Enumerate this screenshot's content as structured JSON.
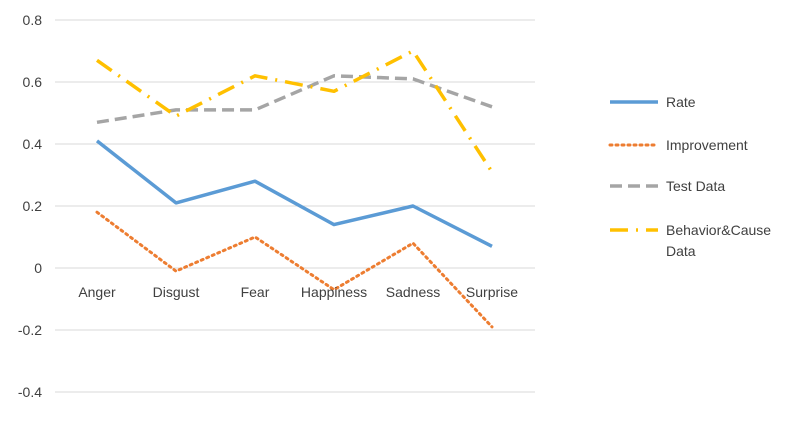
{
  "chart_data": {
    "type": "line",
    "title": "",
    "xlabel": "",
    "ylabel": "",
    "categories": [
      "Anger",
      "Disgust",
      "Fear",
      "Happiness",
      "Sadness",
      "Surprise"
    ],
    "ylim": [
      -0.4,
      0.8
    ],
    "yticks": [
      0.8,
      0.6,
      0.4,
      0.2,
      0,
      -0.2,
      -0.4
    ],
    "ytick_labels": [
      "0.8",
      "0.6",
      "0.4",
      "0.2",
      "0",
      "-0.2",
      "-0.4"
    ],
    "grid": true,
    "legend_position": "right",
    "series": [
      {
        "name": "Rate",
        "values": [
          0.41,
          0.21,
          0.28,
          0.14,
          0.2,
          0.07
        ],
        "color": "#5B9BD5",
        "style": "solid"
      },
      {
        "name": "Improvement",
        "values": [
          0.18,
          -0.01,
          0.1,
          -0.07,
          0.08,
          -0.19
        ],
        "color": "#ED7D31",
        "style": "dotted"
      },
      {
        "name": "Test Data",
        "values": [
          0.47,
          0.51,
          0.51,
          0.62,
          0.61,
          0.52
        ],
        "color": "#A5A5A5",
        "style": "dashed"
      },
      {
        "name": "Behavior&Cause Data",
        "legend_lines": [
          "Behavior&Cause",
          "Data"
        ],
        "values": [
          0.67,
          0.49,
          0.62,
          0.57,
          0.7,
          0.31
        ],
        "color": "#FFC000",
        "style": "dash-dot"
      }
    ]
  }
}
